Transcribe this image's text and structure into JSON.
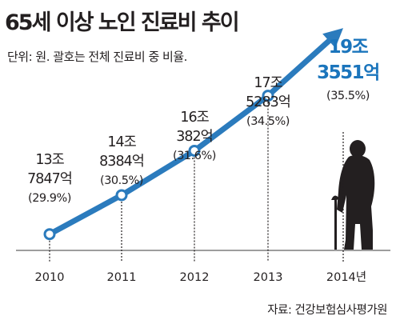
{
  "title": "65세 이상 노인 진료비 추이",
  "unit_note": "단위: 원. 괄호는 전체 진료비 중 비율.",
  "source": "자료: 건강보험심사평가원",
  "colors": {
    "line": "#2b7bbd",
    "highlight": "#1b75bc",
    "axis": "#9d9d9d",
    "grid": "#231f20"
  },
  "chart_data": {
    "type": "line",
    "title": "65세 이상 노인 진료비 추이",
    "categories": [
      "2010",
      "2011",
      "2012",
      "2013",
      "2014년"
    ],
    "series": [
      {
        "values": [
          13.7847,
          14.8384,
          16.0382,
          17.5283,
          19.3551
        ],
        "labels_line1": [
          "13조",
          "14조",
          "16조",
          "17조",
          "19조"
        ],
        "labels_line2": [
          "7847억",
          "8384억",
          "382억",
          "5283억",
          "3551억"
        ],
        "shares": [
          "(29.9%)",
          "(30.5%)",
          "(31.6%)",
          "(34.5%)",
          "(35.5%)"
        ],
        "share_values": [
          29.9,
          30.5,
          31.6,
          34.5,
          35.5
        ]
      }
    ],
    "ylim": [
      12.2,
      19.4
    ],
    "grid": true
  }
}
